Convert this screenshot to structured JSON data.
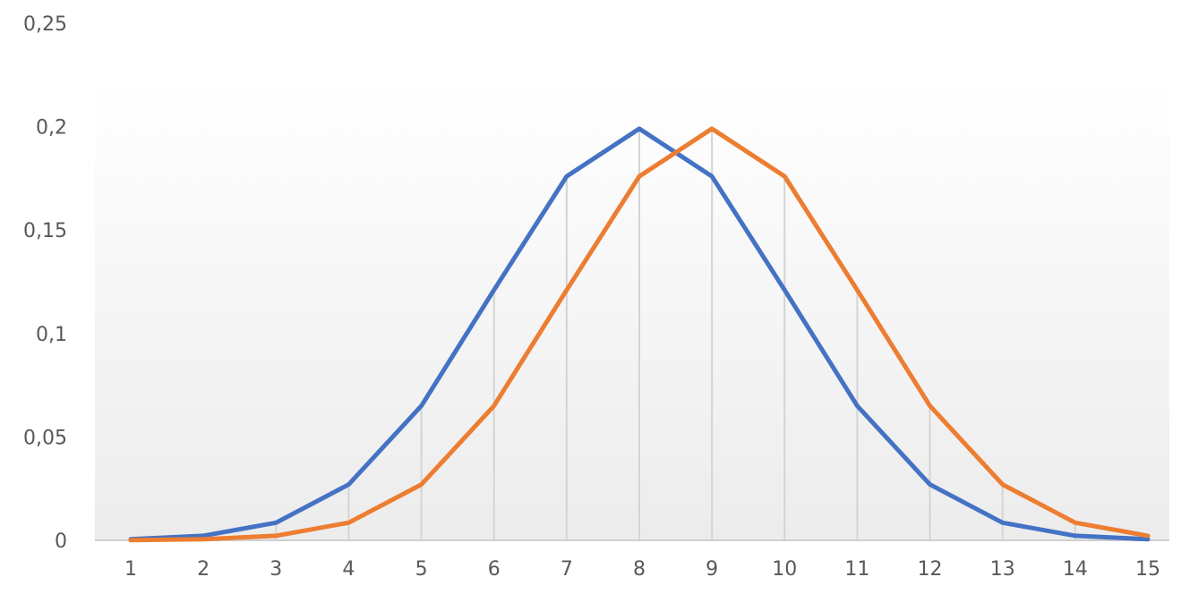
{
  "chart_data": {
    "type": "line",
    "title": "",
    "xlabel": "",
    "ylabel": "",
    "categories": [
      "1",
      "2",
      "3",
      "4",
      "5",
      "6",
      "7",
      "8",
      "9",
      "10",
      "11",
      "12",
      "13",
      "14",
      "15"
    ],
    "ylim": [
      0,
      0.25
    ],
    "y_ticks": [
      0,
      0.05,
      0.1,
      0.15,
      0.2,
      0.25
    ],
    "y_tick_labels": [
      "0",
      "0,05",
      "0,1",
      "0,15",
      "0,2",
      "0,25"
    ],
    "grid": "vertical drop lines",
    "legend": "none",
    "series": [
      {
        "color": "#4472C4",
        "values": [
          0.0005,
          0.0022,
          0.0085,
          0.027,
          0.065,
          0.121,
          0.176,
          0.199,
          0.176,
          0.121,
          0.065,
          0.027,
          0.0085,
          0.0022,
          0.0005
        ]
      },
      {
        "color": "#ED7D31",
        "values": [
          0.0001,
          0.0005,
          0.0022,
          0.0085,
          0.027,
          0.065,
          0.121,
          0.176,
          0.199,
          0.176,
          0.121,
          0.065,
          0.027,
          0.0085,
          0.0022
        ]
      }
    ]
  }
}
